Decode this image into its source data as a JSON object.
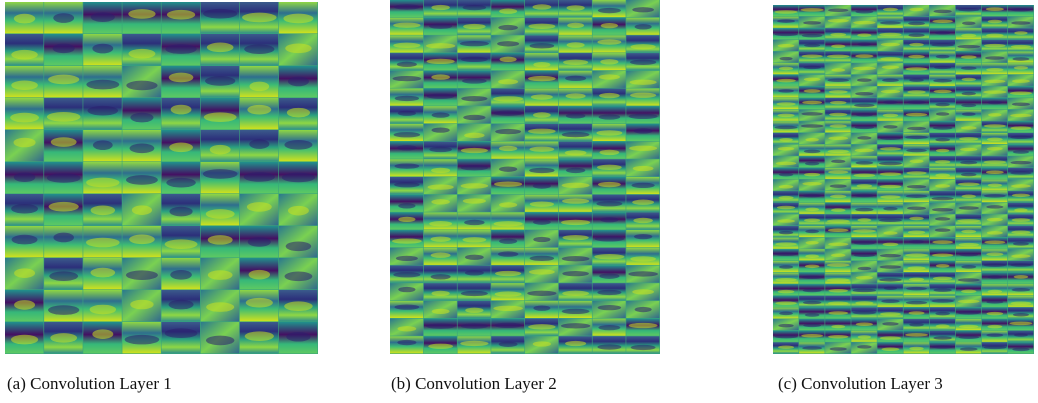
{
  "figure": {
    "panels": [
      {
        "caption": "(a) Convolution Layer 1"
      },
      {
        "caption": "(b) Convolution Layer 2"
      },
      {
        "caption": "(c) Convolution Layer 3"
      }
    ]
  }
}
